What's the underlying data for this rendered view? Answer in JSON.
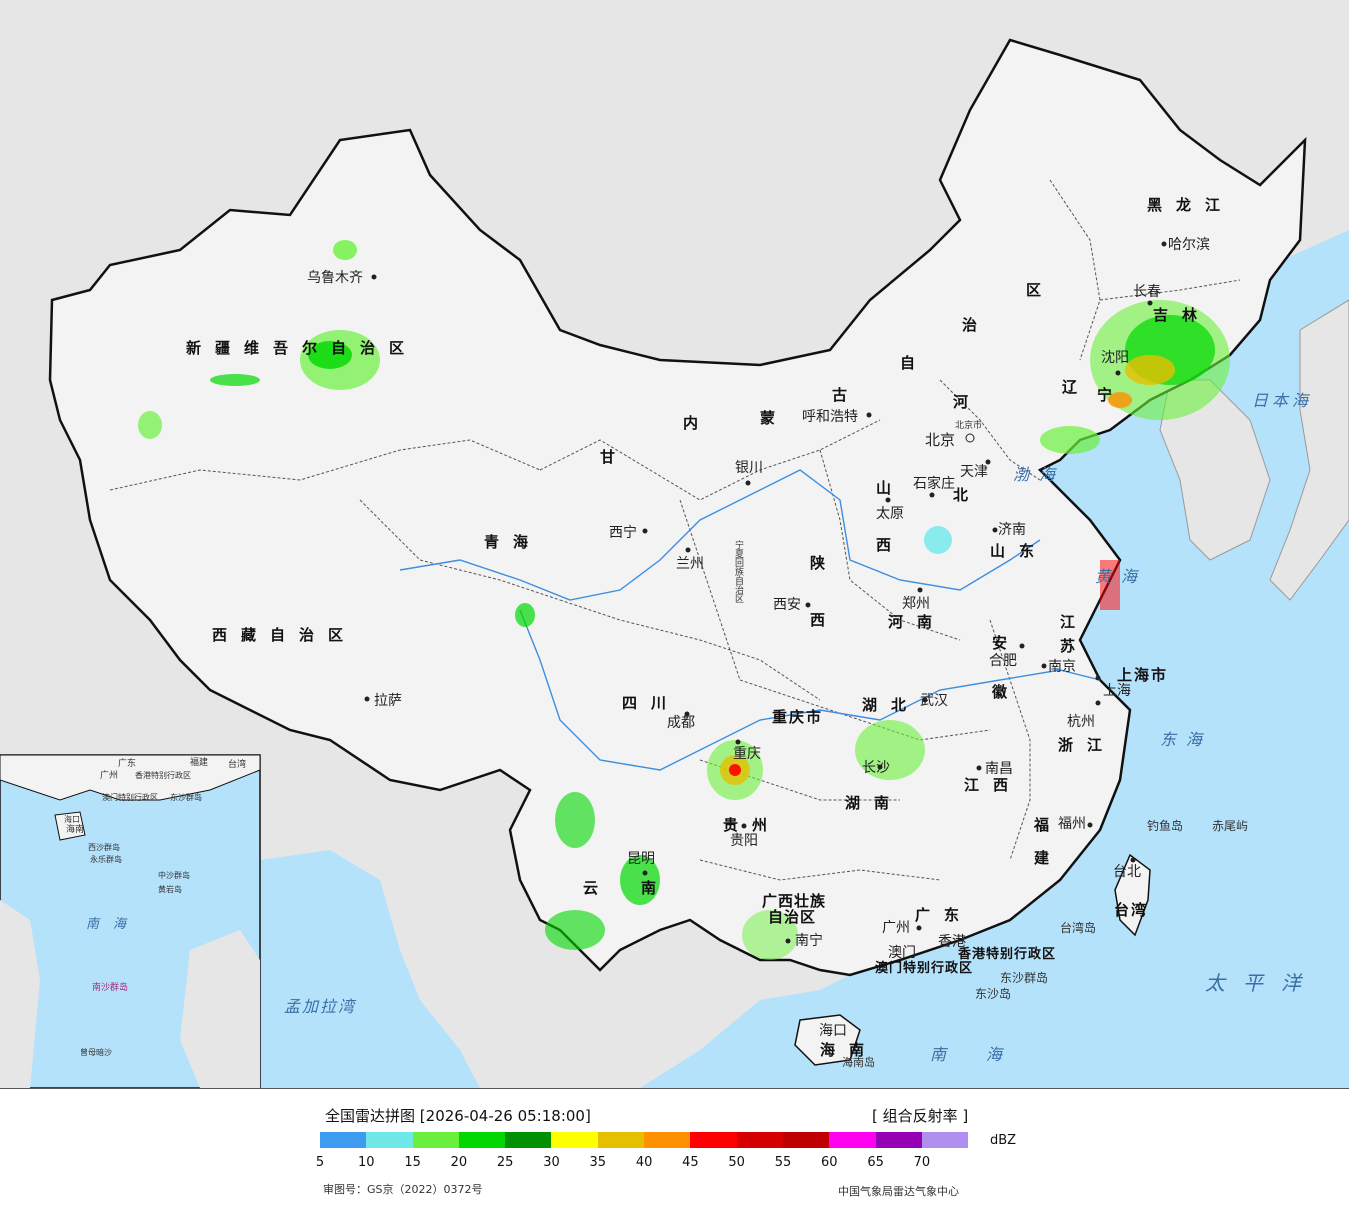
{
  "map": {
    "title": "全国雷达拼图",
    "timestamp": "[2026-04-26 05:18:00]",
    "product": "[ 组合反射率 ]",
    "unit": "dBZ",
    "approval_number": "审图号：GS京（2022）0372号",
    "organization": "中国气象局雷达气象中心",
    "colors": {
      "land": "#f2f2f2",
      "ocean": "#b5e2fb",
      "outside": "#e6e6e6",
      "border": "#111111"
    }
  },
  "legend": {
    "colors": [
      "#3d9cf0",
      "#6ee8e8",
      "#6af03c",
      "#00d800",
      "#009000",
      "#ffff00",
      "#e6c000",
      "#ff9000",
      "#ff0000",
      "#d60000",
      "#c00000",
      "#ff00f0",
      "#9600b4",
      "#ad90f0"
    ],
    "ticks": [
      "5",
      "10",
      "15",
      "20",
      "25",
      "30",
      "35",
      "40",
      "45",
      "50",
      "55",
      "60",
      "65",
      "70"
    ]
  },
  "labels": {
    "provinces": [
      "新疆维吾尔自治区",
      "西藏自治区",
      "青海",
      "甘",
      "内",
      "蒙",
      "古",
      "自",
      "治",
      "区",
      "黑龙江",
      "吉林",
      "辽",
      "宁",
      "河",
      "北",
      "山",
      "西",
      "山东",
      "河南",
      "陕",
      "西",
      "四川",
      "重庆市",
      "贵州",
      "云",
      "南",
      "广西壮族",
      "自治区",
      "湖北",
      "湖南",
      "江西",
      "安",
      "徽",
      "江",
      "苏",
      "浙江",
      "福",
      "建",
      "广东",
      "台湾",
      "宁夏回族自治区"
    ],
    "cities": [
      "乌鲁木齐",
      "拉萨",
      "西宁",
      "兰州",
      "银川",
      "呼和浩特",
      "北京",
      "北京市",
      "天津",
      "石家庄",
      "太原",
      "济南",
      "郑州",
      "西安",
      "成都",
      "重庆",
      "贵阳",
      "昆明",
      "南宁",
      "广州",
      "澳门",
      "香港",
      "海口",
      "长沙",
      "南昌",
      "武汉",
      "合肥",
      "南京",
      "上海",
      "杭州",
      "福州",
      "台北",
      "沈阳",
      "长春",
      "哈尔滨"
    ],
    "seas": [
      "渤海",
      "黄海",
      "东海",
      "南海",
      "日本海",
      "太平洋",
      "孟加拉湾",
      "海南",
      "海南岛",
      "钓鱼岛",
      "赤尾屿",
      "台湾岛",
      "东沙群岛",
      "东沙岛",
      "上海市",
      "香港特别行政区",
      "澳门特别行政区"
    ],
    "inset": [
      "广州",
      "广东",
      "福建",
      "台湾",
      "香港特别行政区",
      "澳门特别行政区",
      "海口",
      "海南",
      "东沙群岛",
      "西沙群岛",
      "中沙群岛",
      "永乐群岛",
      "黄岩岛",
      "南沙群岛",
      "曾母暗沙",
      "南海"
    ]
  }
}
